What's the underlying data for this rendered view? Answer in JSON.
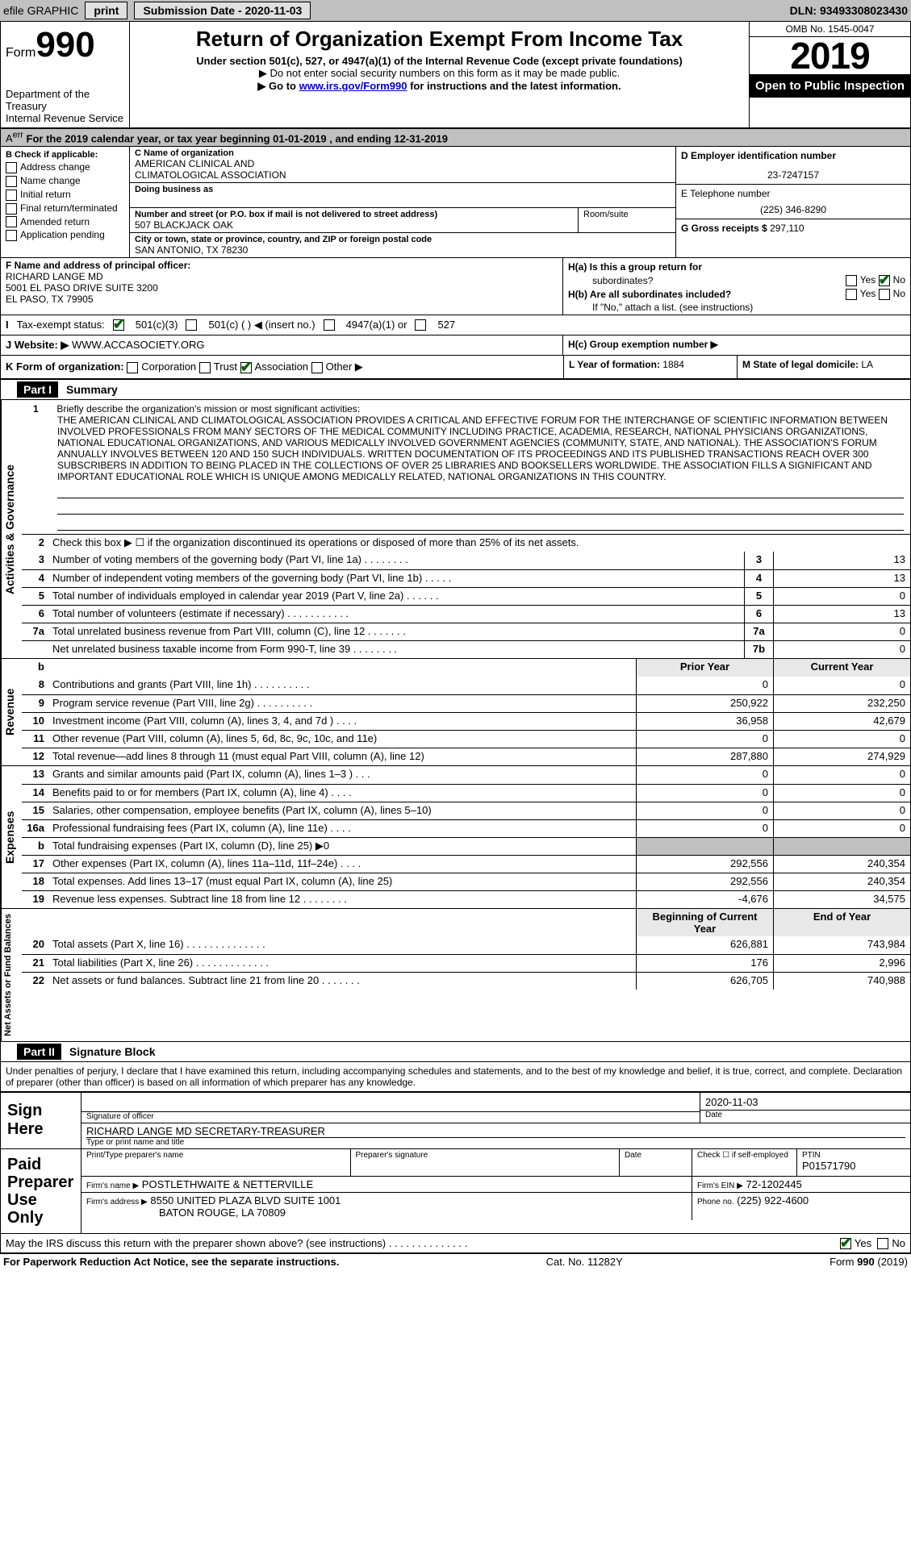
{
  "topbar": {
    "efile": "efile GRAPHIC",
    "print": "print",
    "submission_label": "Submission Date - 2020-11-03",
    "dln": "DLN: 93493308023430"
  },
  "header": {
    "form_label": "Form",
    "form_number": "990",
    "dept1": "Department of the Treasury",
    "dept2": "Internal Revenue Service",
    "title": "Return of Organization Exempt From Income Tax",
    "subtitle": "Under section 501(c), 527, or 4947(a)(1) of the Internal Revenue Code (except private foundations)",
    "note1": "▶ Do not enter social security numbers on this form as it may be made public.",
    "note2_pre": "▶ Go to ",
    "note2_link": "www.irs.gov/Form990",
    "note2_post": " for instructions and the latest information.",
    "omb": "OMB No. 1545-0047",
    "year": "2019",
    "open": "Open to Public Inspection"
  },
  "calrow": "For the 2019 calendar year, or tax year beginning 01-01-2019   , and ending 12-31-2019",
  "B": {
    "label": "Check if applicable:",
    "items": [
      "Address change",
      "Name change",
      "Initial return",
      "Final return/terminated",
      "Amended return",
      "Application pending"
    ]
  },
  "C": {
    "name_label": "C Name of organization",
    "name1": "AMERICAN CLINICAL AND",
    "name2": "CLIMATOLOGICAL ASSOCIATION",
    "dba_label": "Doing business as",
    "addr_label": "Number and street (or P.O. box if mail is not delivered to street address)",
    "room_label": "Room/suite",
    "addr": "507 BLACKJACK OAK",
    "city_label": "City or town, state or province, country, and ZIP or foreign postal code",
    "city": "SAN ANTONIO, TX  78230"
  },
  "D": {
    "label": "D Employer identification number",
    "ein": "23-7247157"
  },
  "E": {
    "label": "E Telephone number",
    "phone": "(225) 346-8290"
  },
  "G": {
    "label": "G Gross receipts $",
    "amount": "297,110"
  },
  "F": {
    "label": "F  Name and address of principal officer:",
    "name": "RICHARD LANGE MD",
    "addr1": "5001 EL PASO DRIVE SUITE 3200",
    "addr2": "EL PASO, TX  79905"
  },
  "H": {
    "a_label": "H(a)  Is this a group return for",
    "a_sub": "subordinates?",
    "b_label": "H(b)  Are all subordinates included?",
    "b_note": "If \"No,\" attach a list. (see instructions)",
    "c_label": "H(c)  Group exemption number ▶",
    "yes": "Yes",
    "no": "No"
  },
  "I": {
    "label": "Tax-exempt status:",
    "opt1": "501(c)(3)",
    "opt2": "501(c) (   ) ◀ (insert no.)",
    "opt3": "4947(a)(1) or",
    "opt4": "527"
  },
  "J": {
    "label": "J   Website: ▶",
    "site": "WWW.ACCASOCIETY.ORG"
  },
  "K": {
    "label": "K Form of organization:",
    "opts": [
      "Corporation",
      "Trust",
      "Association",
      "Other ▶"
    ],
    "checked_idx": 2
  },
  "L": {
    "label": "L Year of formation:",
    "val": "1884"
  },
  "M": {
    "label": "M State of legal domicile:",
    "val": "LA"
  },
  "part1": {
    "title": "Part I",
    "name": "Summary"
  },
  "mission": {
    "num": "1",
    "label": "Briefly describe the organization's mission or most significant activities:",
    "text": "THE AMERICAN CLINICAL AND CLIMATOLOGICAL ASSOCIATION PROVIDES A CRITICAL AND EFFECTIVE FORUM FOR THE INTERCHANGE OF SCIENTIFIC INFORMATION BETWEEN INVOLVED PROFESSIONALS FROM MANY SECTORS OF THE MEDICAL COMMUNITY INCLUDING PRACTICE, ACADEMIA, RESEARCH, NATIONAL PHYSICIANS ORGANIZATIONS, NATIONAL EDUCATIONAL ORGANIZATIONS, AND VARIOUS MEDICALLY INVOLVED GOVERNMENT AGENCIES (COMMUNITY, STATE, AND NATIONAL). THE ASSOCIATION'S FORUM ANNUALLY INVOLVES BETWEEN 120 AND 150 SUCH INDIVIDUALS. WRITTEN DOCUMENTATION OF ITS PROCEEDINGS AND ITS PUBLISHED TRANSACTIONS REACH OVER 300 SUBSCRIBERS IN ADDITION TO BEING PLACED IN THE COLLECTIONS OF OVER 25 LIBRARIES AND BOOKSELLERS WORLDWIDE. THE ASSOCIATION FILLS A SIGNIFICANT AND IMPORTANT EDUCATIONAL ROLE WHICH IS UNIQUE AMONG MEDICALLY RELATED, NATIONAL ORGANIZATIONS IN THIS COUNTRY."
  },
  "gov": {
    "l2": "Check this box ▶ ☐  if the organization discontinued its operations or disposed of more than 25% of its net assets.",
    "lines": [
      {
        "n": "3",
        "d": "Number of voting members of the governing body (Part VI, line 1a)  .    .    .    .    .    .    .    .",
        "b": "3",
        "v": "13"
      },
      {
        "n": "4",
        "d": "Number of independent voting members of the governing body (Part VI, line 1b)  .    .    .    .    .",
        "b": "4",
        "v": "13"
      },
      {
        "n": "5",
        "d": "Total number of individuals employed in calendar year 2019 (Part V, line 2a)  .    .    .    .    .    .",
        "b": "5",
        "v": "0"
      },
      {
        "n": "6",
        "d": "Total number of volunteers (estimate if necessary)   .    .    .    .    .    .    .    .    .    .    .",
        "b": "6",
        "v": "13"
      },
      {
        "n": "7a",
        "d": "Total unrelated business revenue from Part VIII, column (C), line 12   .    .    .    .    .    .    .",
        "b": "7a",
        "v": "0"
      },
      {
        "n": "",
        "d": "Net unrelated business taxable income from Form 990-T, line 39    .    .    .    .    .    .    .    .",
        "b": "7b",
        "v": "0"
      }
    ]
  },
  "revexp": {
    "head_prior": "Prior Year",
    "head_curr": "Current Year",
    "rev": [
      {
        "n": "8",
        "d": "Contributions and grants (Part VIII, line 1h)  .    .    .    .    .    .    .    .    .    .",
        "p": "0",
        "c": "0"
      },
      {
        "n": "9",
        "d": "Program service revenue (Part VIII, line 2g)  .    .    .    .    .    .    .    .    .    .",
        "p": "250,922",
        "c": "232,250"
      },
      {
        "n": "10",
        "d": "Investment income (Part VIII, column (A), lines 3, 4, and 7d )    .    .    .    .",
        "p": "36,958",
        "c": "42,679"
      },
      {
        "n": "11",
        "d": "Other revenue (Part VIII, column (A), lines 5, 6d, 8c, 9c, 10c, and 11e)",
        "p": "0",
        "c": "0"
      },
      {
        "n": "12",
        "d": "Total revenue—add lines 8 through 11 (must equal Part VIII, column (A), line 12)",
        "p": "287,880",
        "c": "274,929"
      }
    ],
    "exp": [
      {
        "n": "13",
        "d": "Grants and similar amounts paid (Part IX, column (A), lines 1–3 )  .    .    .",
        "p": "0",
        "c": "0"
      },
      {
        "n": "14",
        "d": "Benefits paid to or for members (Part IX, column (A), line 4)  .    .    .    .",
        "p": "0",
        "c": "0"
      },
      {
        "n": "15",
        "d": "Salaries, other compensation, employee benefits (Part IX, column (A), lines 5–10)",
        "p": "0",
        "c": "0"
      },
      {
        "n": "16a",
        "d": "Professional fundraising fees (Part IX, column (A), line 11e)  .    .    .    .",
        "p": "0",
        "c": "0"
      },
      {
        "n": "b",
        "d": "Total fundraising expenses (Part IX, column (D), line 25) ▶0",
        "p": "",
        "c": "",
        "gray": true
      },
      {
        "n": "17",
        "d": "Other expenses (Part IX, column (A), lines 11a–11d, 11f–24e)  .    .    .    .",
        "p": "292,556",
        "c": "240,354"
      },
      {
        "n": "18",
        "d": "Total expenses. Add lines 13–17 (must equal Part IX, column (A), line 25)",
        "p": "292,556",
        "c": "240,354"
      },
      {
        "n": "19",
        "d": "Revenue less expenses. Subtract line 18 from line 12  .    .    .    .    .    .    .    .",
        "p": "-4,676",
        "c": "34,575"
      }
    ],
    "net_head_prior": "Beginning of Current Year",
    "net_head_curr": "End of Year",
    "net": [
      {
        "n": "20",
        "d": "Total assets (Part X, line 16)  .    .    .    .    .    .    .    .    .    .    .    .    .    .",
        "p": "626,881",
        "c": "743,984"
      },
      {
        "n": "21",
        "d": "Total liabilities (Part X, line 26)  .    .    .    .    .    .    .    .    .    .    .    .    .",
        "p": "176",
        "c": "2,996"
      },
      {
        "n": "22",
        "d": "Net assets or fund balances. Subtract line 21 from line 20  .    .    .    .    .    .    .",
        "p": "626,705",
        "c": "740,988"
      }
    ]
  },
  "part2": {
    "title": "Part II",
    "name": "Signature Block"
  },
  "penalties": "Under penalties of perjury, I declare that I have examined this return, including accompanying schedules and statements, and to the best of my knowledge and belief, it is true, correct, and complete. Declaration of preparer (other than officer) is based on all information of which preparer has any knowledge.",
  "sign": {
    "here": "Sign Here",
    "sig_officer": "Signature of officer",
    "date": "2020-11-03",
    "date_label": "Date",
    "name": "RICHARD LANGE MD  SECRETARY-TREASURER",
    "name_label": "Type or print name and title"
  },
  "paid": {
    "label": "Paid Preparer Use Only",
    "col1": "Print/Type preparer's name",
    "col2": "Preparer's signature",
    "col3": "Date",
    "col4_label": "Check ☐ if self-employed",
    "ptin_label": "PTIN",
    "ptin": "P01571790",
    "firm_name_label": "Firm's name    ▶",
    "firm_name": "POSTLETHWAITE & NETTERVILLE",
    "firm_ein_label": "Firm's EIN ▶",
    "firm_ein": "72-1202445",
    "firm_addr_label": "Firm's address ▶",
    "firm_addr1": "8550 UNITED PLAZA BLVD SUITE 1001",
    "firm_addr2": "BATON ROUGE, LA  70809",
    "phone_label": "Phone no.",
    "phone": "(225) 922-4600"
  },
  "discuss": {
    "text": "May the IRS discuss this return with the preparer shown above? (see instructions)   .    .    .    .    .    .    .    .    .    .    .    .    .    .",
    "yes": "Yes",
    "no": "No"
  },
  "footer": {
    "left": "For Paperwork Reduction Act Notice, see the separate instructions.",
    "center": "Cat. No. 11282Y",
    "right": "Form 990 (2019)"
  },
  "sidelabels": {
    "gov": "Activities & Governance",
    "rev": "Revenue",
    "exp": "Expenses",
    "net": "Net Assets or Fund Balances"
  }
}
